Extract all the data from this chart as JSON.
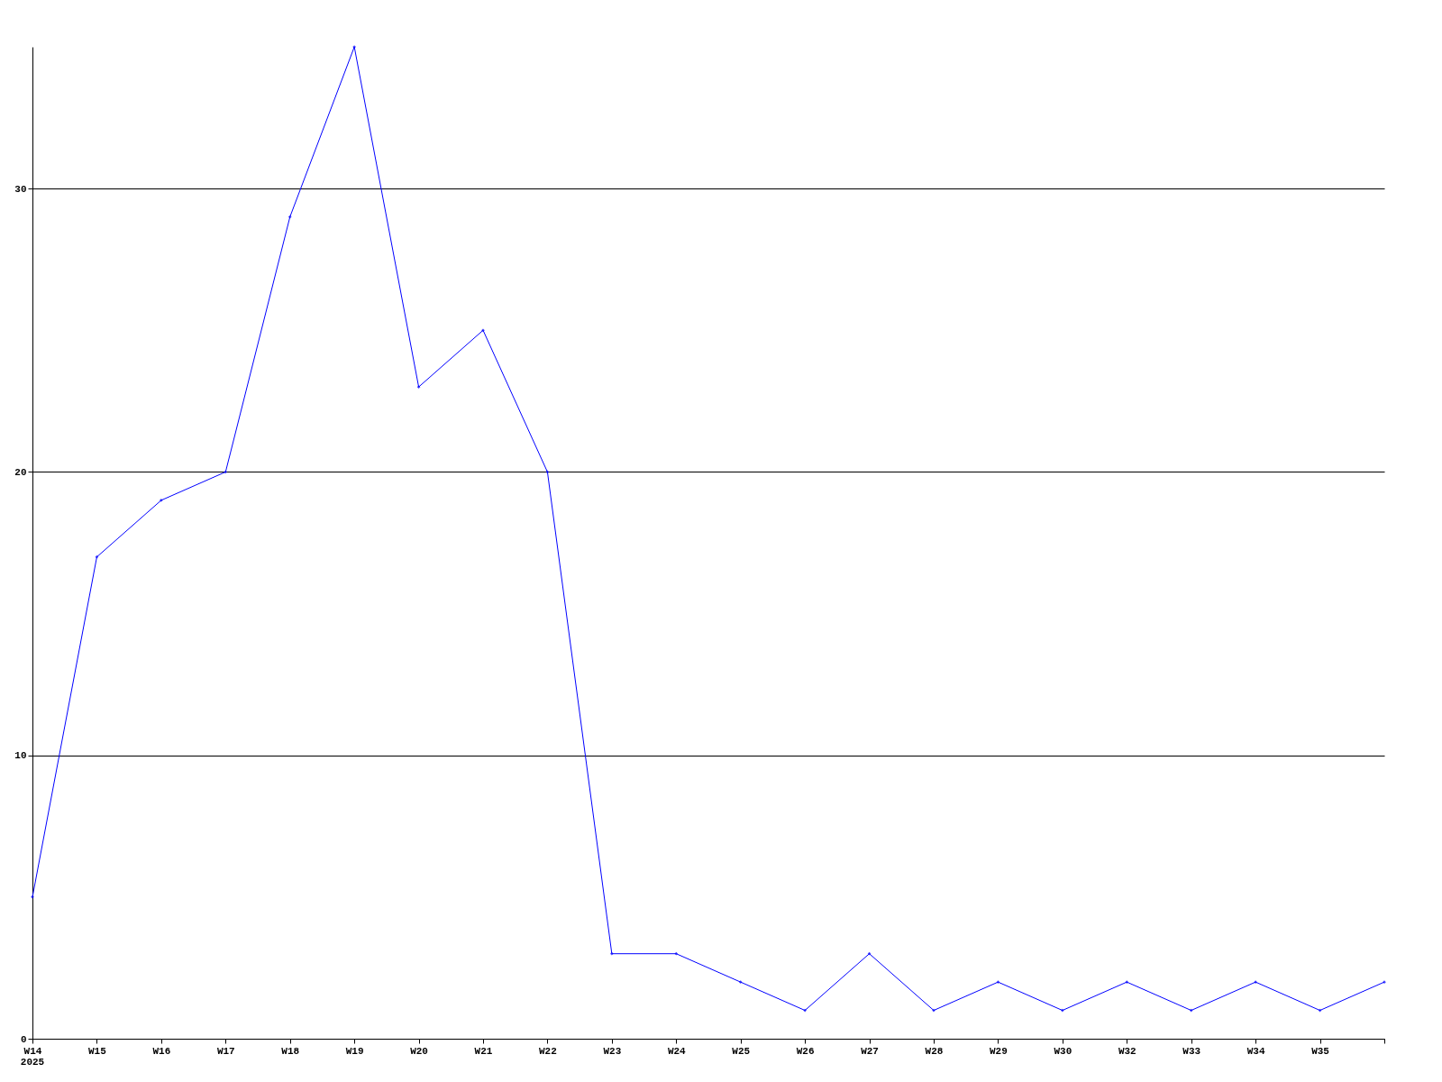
{
  "chart_data": {
    "type": "line",
    "categories": [
      "W14",
      "W15",
      "W16",
      "W17",
      "W18",
      "W19",
      "W20",
      "W21",
      "W22",
      "W23",
      "W24",
      "W25",
      "W26",
      "W27",
      "W28",
      "W29",
      "W30",
      "W32",
      "W33",
      "W34",
      "W35",
      null
    ],
    "series": [
      {
        "color": "#0000ff",
        "values": [
          5,
          17,
          19,
          20,
          29,
          35,
          23,
          25,
          20,
          3,
          3,
          2,
          1,
          3,
          1,
          2,
          1,
          2,
          1,
          2,
          1,
          2
        ]
      }
    ],
    "ylim": [
      0,
      35
    ],
    "yticks": [
      0,
      10,
      20,
      30
    ],
    "grid": "y",
    "marker": "diamond",
    "line_style": "solid",
    "annotations": [
      "2025"
    ]
  }
}
